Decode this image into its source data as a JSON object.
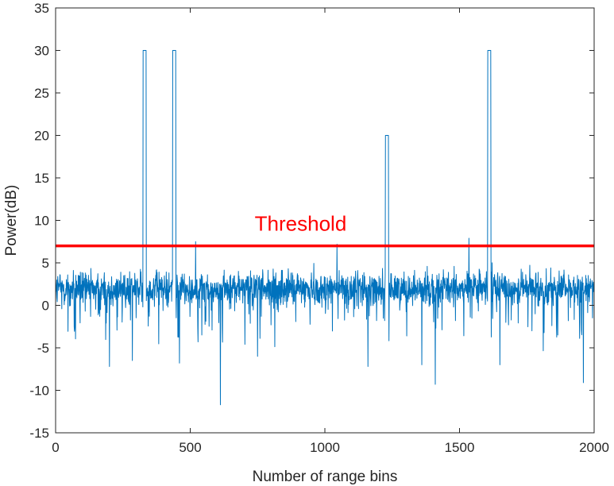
{
  "chart_data": {
    "type": "line",
    "title": "",
    "xlabel": "Number of range bins",
    "ylabel": "Power(dB)",
    "xlim": [
      0,
      2000
    ],
    "ylim": [
      -15,
      35
    ],
    "xticks": [
      0,
      500,
      1000,
      1500,
      2000
    ],
    "yticks": [
      -15,
      -10,
      -5,
      0,
      5,
      10,
      15,
      20,
      25,
      30,
      35
    ],
    "xtick_labels": [
      "0",
      "500",
      "1000",
      "1500",
      "2000"
    ],
    "ytick_labels": [
      "-15",
      "-10",
      "-5",
      "0",
      "5",
      "10",
      "15",
      "20",
      "25",
      "30",
      "35"
    ],
    "grid": false,
    "colors": {
      "signal": "#0072BD",
      "threshold": "#FF0000",
      "axes": "#262626"
    },
    "series": [
      {
        "role": "signal",
        "noise_band": {
          "n_points": 2000,
          "typical_range": [
            -2,
            6
          ],
          "min": -11.7,
          "max": 7.9
        },
        "noise_dips": [
          {
            "x": 200,
            "y": -7.2
          },
          {
            "x": 285,
            "y": -6.5
          },
          {
            "x": 460,
            "y": -6.8
          },
          {
            "x": 612,
            "y": -11.7
          },
          {
            "x": 750,
            "y": -6.0
          },
          {
            "x": 1160,
            "y": -7.2
          },
          {
            "x": 1360,
            "y": -7.0
          },
          {
            "x": 1410,
            "y": -9.3
          },
          {
            "x": 1650,
            "y": -7.0
          },
          {
            "x": 1960,
            "y": -9.1
          }
        ],
        "noise_spikes": [
          {
            "x": 520,
            "y": 7.5
          },
          {
            "x": 1045,
            "y": 7.2
          },
          {
            "x": 1535,
            "y": 7.9
          }
        ],
        "targets": [
          {
            "x_start": 325,
            "x_end": 336,
            "y": 30
          },
          {
            "x_start": 435,
            "x_end": 446,
            "y": 30
          },
          {
            "x_start": 1225,
            "x_end": 1236,
            "y": 20
          },
          {
            "x_start": 1605,
            "x_end": 1616,
            "y": 30
          }
        ]
      },
      {
        "role": "threshold",
        "x": [
          0,
          2000
        ],
        "y": [
          7,
          7
        ]
      }
    ],
    "annotations": [
      {
        "text": "Threshold",
        "x": 910,
        "y": 8.8,
        "color": "#FF0000"
      }
    ]
  }
}
